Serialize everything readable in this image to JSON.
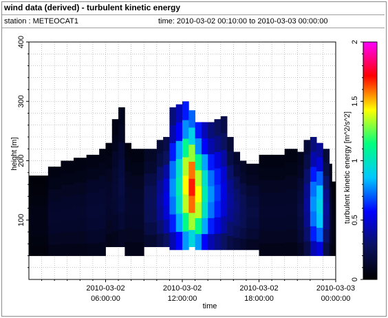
{
  "header": {
    "title": "wind data (derived) - turbulent kinetic energy",
    "station": "station : METEOCAT1",
    "time_range": "time: 2010-03-02 00:10:00 to 2010-03-03 00:00:00"
  },
  "chart_data": {
    "type": "heatmap",
    "title": "wind data (derived) - turbulent kinetic energy",
    "xlabel": "time",
    "ylabel": "height [m]",
    "colorbar_label": "turbulent kinetic energy [m^2/s^2]",
    "xlim_hours": [
      0,
      24
    ],
    "ylim": [
      0,
      400
    ],
    "x_ticks": [
      {
        "hour": 6,
        "line1": "2010-03-02",
        "line2": "06:00:00"
      },
      {
        "hour": 12,
        "line1": "2010-03-02",
        "line2": "12:00:00"
      },
      {
        "hour": 18,
        "line1": "2010-03-02",
        "line2": "18:00:00"
      },
      {
        "hour": 24,
        "line1": "2010-03-03",
        "line2": "00:00:00"
      }
    ],
    "y_ticks": [
      "100",
      "200",
      "300",
      "400"
    ],
    "y_tick_values": [
      100,
      200,
      300,
      400
    ],
    "colorbar_ticks": [
      "0",
      "0.5",
      "1",
      "1.5",
      "2"
    ],
    "colorbar_tick_values": [
      0,
      0.5,
      1,
      1.5,
      2
    ],
    "color_range": [
      0,
      2
    ],
    "colormap": [
      "#000000",
      "#0a1160",
      "#0000ff",
      "#00c8ff",
      "#00ff80",
      "#ffff00",
      "#ff0000",
      "#ff00ff"
    ],
    "grid": true,
    "profile_hours": [
      0,
      1.5,
      2.5,
      3.5,
      4.5,
      5.5,
      6,
      6.5,
      7,
      7.5,
      8,
      9,
      10,
      10.5,
      11,
      11.5,
      12,
      12.5,
      13,
      13.5,
      14,
      14.5,
      15,
      15.5,
      16,
      16.5,
      17,
      18,
      19,
      20,
      21,
      21.5,
      22,
      22.5,
      23,
      23.5,
      23.7,
      24
    ],
    "profile_bottom_m": [
      40,
      40,
      40,
      40,
      40,
      40,
      55,
      55,
      55,
      40,
      40,
      55,
      55,
      55,
      50,
      50,
      50,
      55,
      50,
      50,
      50,
      50,
      50,
      50,
      50,
      50,
      50,
      40,
      40,
      40,
      40,
      40,
      40,
      40,
      40,
      40,
      40,
      40
    ],
    "profile_top_m": [
      175,
      190,
      200,
      205,
      210,
      220,
      230,
      270,
      290,
      230,
      220,
      220,
      235,
      240,
      290,
      295,
      300,
      285,
      265,
      265,
      265,
      270,
      275,
      240,
      215,
      200,
      195,
      210,
      210,
      220,
      215,
      235,
      240,
      230,
      220,
      195,
      165,
      150
    ],
    "tke_values": [
      0.05,
      0.1,
      0.1,
      0.1,
      0.12,
      0.12,
      0.1,
      0.12,
      0.15,
      0.1,
      0.1,
      0.2,
      0.3,
      0.4,
      0.6,
      0.8,
      1.1,
      1.3,
      1.1,
      0.8,
      0.6,
      0.5,
      0.4,
      0.3,
      0.25,
      0.2,
      0.15,
      0.1,
      0.1,
      0.1,
      0.15,
      0.3,
      0.6,
      0.7,
      0.3,
      0.1,
      0.05,
      0.05
    ]
  }
}
